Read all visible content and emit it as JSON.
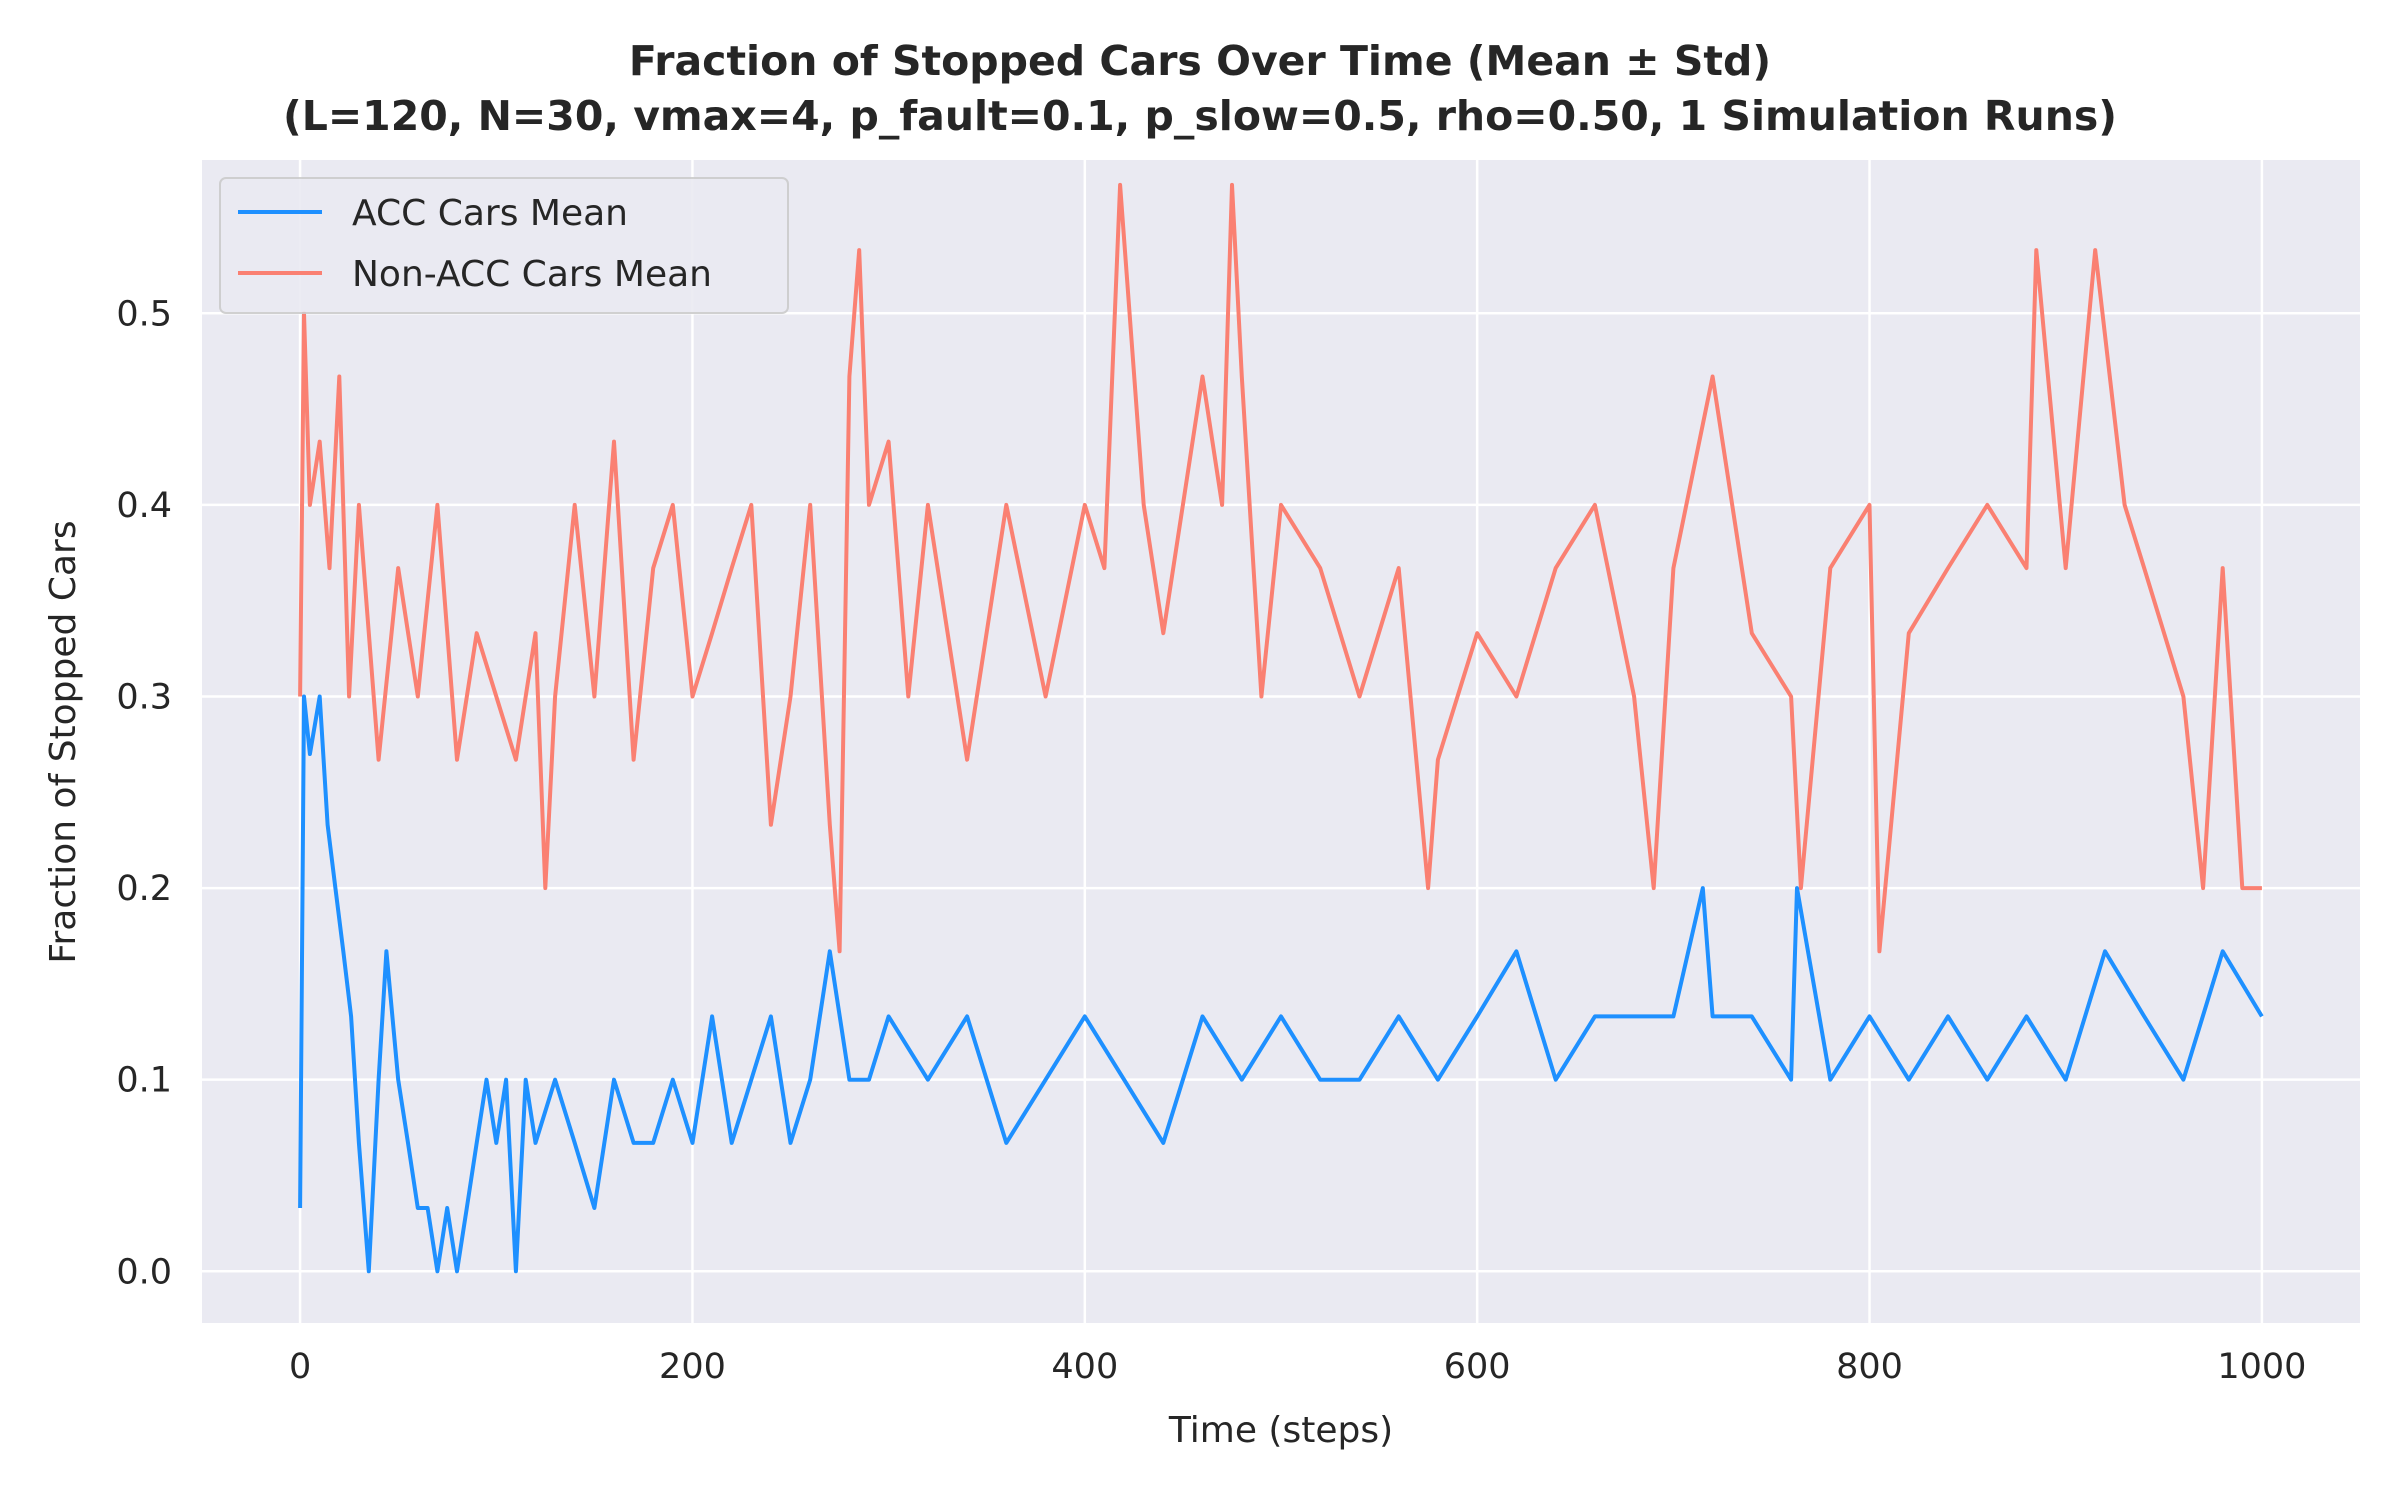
{
  "chart_data": {
    "type": "line",
    "title": "Fraction of Stopped Cars Over Time (Mean ± Std)",
    "subtitle": "(L=120, N=30, vmax=4, p_fault=0.1, p_slow=0.5, rho=0.50, 1 Simulation Runs)",
    "xlabel": "Time (steps)",
    "ylabel": "Fraction of Stopped Cars",
    "xlim": [
      -50,
      1050
    ],
    "ylim": [
      -0.027,
      0.58
    ],
    "xticks": [
      0,
      200,
      400,
      600,
      800,
      1000
    ],
    "xtick_labels": [
      "0",
      "200",
      "400",
      "600",
      "800",
      "1000"
    ],
    "yticks": [
      0.0,
      0.1,
      0.2,
      0.3,
      0.4,
      0.5
    ],
    "ytick_labels": [
      "0.0",
      "0.1",
      "0.2",
      "0.3",
      "0.4",
      "0.5"
    ],
    "grid": true,
    "legend_position": "top-left",
    "series": [
      {
        "name": "ACC Cars Mean",
        "color": "#1e90ff",
        "x": [
          0,
          2,
          5,
          10,
          14,
          18,
          22,
          26,
          30,
          35,
          40,
          44,
          50,
          55,
          60,
          65,
          70,
          75,
          80,
          85,
          90,
          95,
          100,
          105,
          110,
          115,
          120,
          130,
          140,
          150,
          160,
          170,
          180,
          190,
          200,
          210,
          220,
          230,
          240,
          250,
          260,
          270,
          280,
          290,
          300,
          320,
          340,
          360,
          380,
          400,
          420,
          440,
          460,
          480,
          500,
          520,
          540,
          560,
          580,
          600,
          620,
          640,
          660,
          680,
          700,
          715,
          720,
          740,
          760,
          763,
          780,
          800,
          820,
          840,
          860,
          880,
          900,
          920,
          940,
          960,
          980,
          1000
        ],
        "values": [
          0.033,
          0.3,
          0.27,
          0.3,
          0.233,
          0.2,
          0.167,
          0.133,
          0.067,
          0.0,
          0.1,
          0.167,
          0.1,
          0.067,
          0.033,
          0.033,
          0.0,
          0.033,
          0.0,
          0.033,
          0.067,
          0.1,
          0.067,
          0.1,
          0.0,
          0.1,
          0.067,
          0.1,
          0.067,
          0.033,
          0.1,
          0.067,
          0.067,
          0.1,
          0.067,
          0.133,
          0.067,
          0.1,
          0.133,
          0.067,
          0.1,
          0.167,
          0.1,
          0.1,
          0.133,
          0.1,
          0.133,
          0.067,
          0.1,
          0.133,
          0.1,
          0.067,
          0.133,
          0.1,
          0.133,
          0.1,
          0.1,
          0.133,
          0.1,
          0.133,
          0.167,
          0.1,
          0.133,
          0.133,
          0.133,
          0.2,
          0.133,
          0.133,
          0.1,
          0.2,
          0.1,
          0.133,
          0.1,
          0.133,
          0.1,
          0.133,
          0.1,
          0.167,
          0.133,
          0.1,
          0.167,
          0.133
        ]
      },
      {
        "name": "Non-ACC Cars Mean",
        "color": "#fa8072",
        "x": [
          0,
          2,
          5,
          10,
          15,
          20,
          25,
          30,
          40,
          50,
          60,
          70,
          80,
          90,
          100,
          110,
          120,
          125,
          130,
          140,
          150,
          160,
          170,
          180,
          190,
          200,
          210,
          220,
          230,
          240,
          250,
          260,
          270,
          275,
          280,
          285,
          290,
          300,
          310,
          320,
          340,
          360,
          380,
          400,
          410,
          418,
          430,
          440,
          460,
          470,
          475,
          480,
          490,
          500,
          520,
          540,
          560,
          575,
          580,
          600,
          620,
          640,
          660,
          680,
          690,
          700,
          720,
          740,
          760,
          765,
          780,
          800,
          805,
          820,
          840,
          860,
          880,
          885,
          900,
          915,
          930,
          940,
          960,
          970,
          980,
          990,
          1000
        ],
        "values": [
          0.3,
          0.5,
          0.4,
          0.433,
          0.367,
          0.467,
          0.3,
          0.4,
          0.267,
          0.367,
          0.3,
          0.4,
          0.267,
          0.333,
          0.3,
          0.267,
          0.333,
          0.2,
          0.3,
          0.4,
          0.3,
          0.433,
          0.267,
          0.367,
          0.4,
          0.3,
          0.333,
          0.367,
          0.4,
          0.233,
          0.3,
          0.4,
          0.233,
          0.167,
          0.467,
          0.533,
          0.4,
          0.433,
          0.3,
          0.4,
          0.267,
          0.4,
          0.3,
          0.4,
          0.367,
          0.567,
          0.4,
          0.333,
          0.467,
          0.4,
          0.567,
          0.467,
          0.3,
          0.4,
          0.367,
          0.3,
          0.367,
          0.2,
          0.267,
          0.333,
          0.3,
          0.367,
          0.4,
          0.3,
          0.2,
          0.367,
          0.467,
          0.333,
          0.3,
          0.2,
          0.367,
          0.4,
          0.167,
          0.333,
          0.367,
          0.4,
          0.367,
          0.533,
          0.367,
          0.533,
          0.4,
          0.367,
          0.3,
          0.2,
          0.367,
          0.2,
          0.2
        ]
      }
    ]
  }
}
